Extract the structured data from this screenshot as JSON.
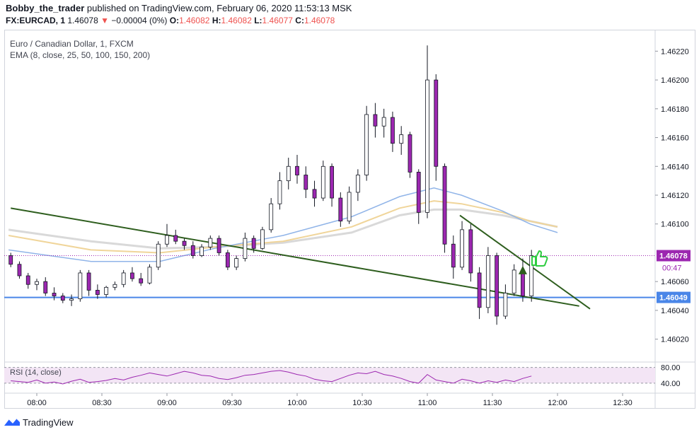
{
  "header": {
    "publisher": "Bobby_the_trader",
    "published_text": "published on TradingView.com, February 06, 2020 11:53:13 MSK",
    "symbol": "FX:EURCAD, 1",
    "last": "1.46078",
    "change_arrow": "▼",
    "change": "−0.00004 (0%)",
    "o_label": "O:",
    "o_value": "1.46082",
    "h_label": "H:",
    "h_value": "1.46082",
    "l_label": "L:",
    "l_value": "1.46077",
    "c_label": "C:",
    "c_value": "1.46078"
  },
  "indicators": {
    "instrument": "Euro / Canadian Dollar, 1, FXCM",
    "ema": "EMA (8, close, 25, 50, 100, 150, 200)",
    "rsi": "RSI (14, close)"
  },
  "footer": {
    "brand": "TradingView",
    "logo_icon": "tradingview-logo-icon"
  },
  "colors": {
    "candle_body": "#9c27b0",
    "candle_outline": "#131722",
    "trendline": "#2e5e1e",
    "support": "#4a86e8",
    "ema_blue": "#90b4e8",
    "ema_orange": "#f0d59a",
    "ema_gray": "#d9d9d9",
    "price_badge": "#9c27b0",
    "rsi_line": "#9c27b0",
    "thumb_icon": "#2ecc40"
  },
  "chart_data": {
    "type": "candlestick",
    "timeframe": "1",
    "price_axis": {
      "ylim": [
        1.4601,
        1.4623
      ],
      "ticks": [
        "1.46220",
        "1.46200",
        "1.46180",
        "1.46160",
        "1.46140",
        "1.46120",
        "1.46100",
        "1.46060",
        "1.46040",
        "1.46020"
      ]
    },
    "time_axis": {
      "ticks": [
        "08:00",
        "08:30",
        "09:00",
        "09:30",
        "10:00",
        "10:30",
        "11:00",
        "11:30",
        "12:00",
        "12:30"
      ]
    },
    "candles_ohlc_approx": [
      [
        "07:48",
        1.46078,
        1.4608,
        1.4607,
        1.46072
      ],
      [
        "07:52",
        1.46072,
        1.46074,
        1.46062,
        1.46064
      ],
      [
        "07:56",
        1.46064,
        1.46066,
        1.46055,
        1.46058
      ],
      [
        "08:00",
        1.46058,
        1.46062,
        1.46054,
        1.4606
      ],
      [
        "08:04",
        1.4606,
        1.46063,
        1.4605,
        1.46052
      ],
      [
        "08:08",
        1.46052,
        1.46056,
        1.46047,
        1.4605
      ],
      [
        "08:12",
        1.4605,
        1.46052,
        1.46045,
        1.46047
      ],
      [
        "08:16",
        1.46047,
        1.46051,
        1.46043,
        1.46048
      ],
      [
        "08:20",
        1.46048,
        1.46068,
        1.46046,
        1.46066
      ],
      [
        "08:24",
        1.46066,
        1.46068,
        1.4605,
        1.46054
      ],
      [
        "08:28",
        1.46054,
        1.46058,
        1.46048,
        1.46051
      ],
      [
        "08:32",
        1.46051,
        1.46057,
        1.46049,
        1.46056
      ],
      [
        "08:36",
        1.46056,
        1.4606,
        1.46054,
        1.46058
      ],
      [
        "08:40",
        1.46058,
        1.46068,
        1.46056,
        1.46066
      ],
      [
        "08:44",
        1.46066,
        1.4607,
        1.4606,
        1.46062
      ],
      [
        "08:48",
        1.46062,
        1.46066,
        1.46057,
        1.46059
      ],
      [
        "08:52",
        1.46059,
        1.46072,
        1.46058,
        1.4607
      ],
      [
        "08:56",
        1.4607,
        1.46088,
        1.46068,
        1.46086
      ],
      [
        "09:00",
        1.46086,
        1.461,
        1.46084,
        1.46092
      ],
      [
        "09:04",
        1.46092,
        1.46096,
        1.46086,
        1.46088
      ],
      [
        "09:08",
        1.46088,
        1.4609,
        1.46082,
        1.46085
      ],
      [
        "09:12",
        1.46085,
        1.46088,
        1.46076,
        1.46078
      ],
      [
        "09:16",
        1.46078,
        1.46086,
        1.46077,
        1.46084
      ],
      [
        "09:20",
        1.46084,
        1.46092,
        1.46082,
        1.4609
      ],
      [
        "09:24",
        1.4609,
        1.46092,
        1.46078,
        1.4608
      ],
      [
        "09:28",
        1.4608,
        1.46082,
        1.46068,
        1.4607
      ],
      [
        "09:32",
        1.4607,
        1.46078,
        1.46068,
        1.46076
      ],
      [
        "09:36",
        1.46076,
        1.46094,
        1.46074,
        1.4609
      ],
      [
        "09:40",
        1.4609,
        1.46092,
        1.4608,
        1.46083
      ],
      [
        "09:44",
        1.46083,
        1.46098,
        1.46082,
        1.46096
      ],
      [
        "09:48",
        1.46096,
        1.46118,
        1.46094,
        1.46114
      ],
      [
        "09:52",
        1.46114,
        1.46136,
        1.4611,
        1.4613
      ],
      [
        "09:56",
        1.4613,
        1.46146,
        1.46124,
        1.4614
      ],
      [
        "10:00",
        1.4614,
        1.46148,
        1.46128,
        1.46134
      ],
      [
        "10:04",
        1.46134,
        1.4614,
        1.46118,
        1.46124
      ],
      [
        "10:08",
        1.46124,
        1.4613,
        1.46112,
        1.46118
      ],
      [
        "10:12",
        1.46118,
        1.46144,
        1.46116,
        1.4614
      ],
      [
        "10:16",
        1.4614,
        1.46142,
        1.46112,
        1.46118
      ],
      [
        "10:20",
        1.46118,
        1.46122,
        1.46098,
        1.46102
      ],
      [
        "10:24",
        1.46102,
        1.46126,
        1.461,
        1.46122
      ],
      [
        "10:28",
        1.46122,
        1.46138,
        1.46116,
        1.46134
      ],
      [
        "10:32",
        1.46134,
        1.46182,
        1.4613,
        1.46176
      ],
      [
        "10:36",
        1.46176,
        1.46184,
        1.4616,
        1.46168
      ],
      [
        "10:40",
        1.46168,
        1.4618,
        1.4616,
        1.46174
      ],
      [
        "10:44",
        1.46174,
        1.46178,
        1.4615,
        1.46156
      ],
      [
        "10:48",
        1.46156,
        1.46168,
        1.46148,
        1.46162
      ],
      [
        "10:52",
        1.46162,
        1.46164,
        1.46132,
        1.46136
      ],
      [
        "10:56",
        1.46136,
        1.46138,
        1.461,
        1.46108
      ],
      [
        "11:00",
        1.46108,
        1.46224,
        1.46104,
        1.462
      ],
      [
        "11:04",
        1.462,
        1.46204,
        1.4613,
        1.4614
      ],
      [
        "11:08",
        1.4614,
        1.46142,
        1.4608,
        1.46086
      ],
      [
        "11:12",
        1.46086,
        1.46092,
        1.46062,
        1.4607
      ],
      [
        "11:16",
        1.4607,
        1.46102,
        1.46068,
        1.46096
      ],
      [
        "11:20",
        1.46096,
        1.461,
        1.4606,
        1.46066
      ],
      [
        "11:24",
        1.46066,
        1.4607,
        1.46034,
        1.46042
      ],
      [
        "11:28",
        1.46042,
        1.46084,
        1.46038,
        1.46078
      ],
      [
        "11:32",
        1.46078,
        1.4608,
        1.4603,
        1.46036
      ],
      [
        "11:36",
        1.46036,
        1.46058,
        1.46034,
        1.46052
      ],
      [
        "11:40",
        1.46052,
        1.46072,
        1.4605,
        1.46068
      ],
      [
        "11:44",
        1.46068,
        1.46076,
        1.46046,
        1.4605
      ],
      [
        "11:48",
        1.4605,
        1.46082,
        1.46046,
        1.46078
      ]
    ],
    "overlays": {
      "ema_blue": [
        [
          0,
          1.46082
        ],
        [
          0.12,
          1.46074
        ],
        [
          0.22,
          1.46074
        ],
        [
          0.3,
          1.46083
        ],
        [
          0.4,
          1.46092
        ],
        [
          0.5,
          1.46105
        ],
        [
          0.57,
          1.46119
        ],
        [
          0.62,
          1.46125
        ],
        [
          0.66,
          1.4612
        ],
        [
          0.72,
          1.46109
        ],
        [
          0.76,
          1.461
        ],
        [
          0.8,
          1.46094
        ]
      ],
      "ema_orange": [
        [
          0,
          1.46092
        ],
        [
          0.12,
          1.46082
        ],
        [
          0.22,
          1.4608
        ],
        [
          0.3,
          1.46084
        ],
        [
          0.4,
          1.46088
        ],
        [
          0.5,
          1.46098
        ],
        [
          0.57,
          1.46111
        ],
        [
          0.62,
          1.46116
        ],
        [
          0.66,
          1.46114
        ],
        [
          0.72,
          1.46108
        ],
        [
          0.76,
          1.46102
        ],
        [
          0.8,
          1.46098
        ]
      ],
      "ema_gray": [
        [
          0,
          1.46096
        ],
        [
          0.12,
          1.46088
        ],
        [
          0.22,
          1.46083
        ],
        [
          0.3,
          1.46084
        ],
        [
          0.4,
          1.46087
        ],
        [
          0.5,
          1.46094
        ],
        [
          0.57,
          1.46106
        ],
        [
          0.62,
          1.4611
        ],
        [
          0.66,
          1.4611
        ],
        [
          0.72,
          1.46106
        ],
        [
          0.76,
          1.46102
        ],
        [
          0.8,
          1.46098
        ]
      ]
    },
    "trendlines": [
      {
        "from": [
          "07:48",
          1.46111
        ],
        "to": [
          "12:10",
          1.46043
        ]
      },
      {
        "from": [
          "11:15",
          1.46106
        ],
        "to": [
          "12:15",
          1.46041
        ]
      }
    ],
    "support_level": 1.46049,
    "price_labels": {
      "last": "1.46078",
      "countdown": "00:47",
      "support": "1.46049"
    },
    "rsi": {
      "label": "RSI (14, close)",
      "ticks": [
        "80.00",
        "40.00"
      ],
      "ylim": [
        20,
        90
      ],
      "values": [
        46,
        44,
        42,
        48,
        40,
        43,
        38,
        45,
        50,
        42,
        44,
        47,
        52,
        48,
        55,
        60,
        66,
        62,
        58,
        64,
        70,
        66,
        60,
        58,
        52,
        49,
        54,
        60,
        62,
        66,
        70,
        72,
        68,
        62,
        58,
        50,
        46,
        44,
        52,
        60,
        66,
        64,
        70,
        62,
        58,
        52,
        44,
        40,
        62,
        48,
        44,
        40,
        50,
        46,
        40,
        46,
        42,
        48,
        44,
        52,
        58
      ]
    }
  }
}
